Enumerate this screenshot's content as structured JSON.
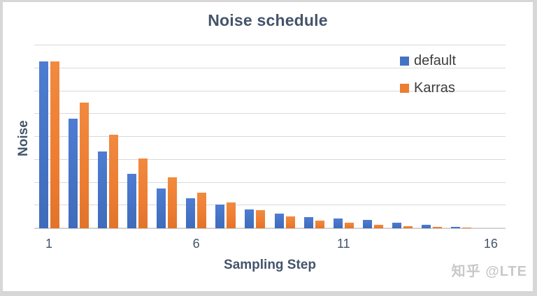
{
  "title": "Noise schedule",
  "watermark": "知乎 @LTE",
  "colors": {
    "series_default": "#4472C4",
    "series_karras": "#ED7D31",
    "title_text": "#44546A",
    "axis_text": "#44546A",
    "legend_text": "#3d3d3d",
    "gridline": "#d9d9d9",
    "watermark_text": "#c9c9c9",
    "background": "#ffffff"
  },
  "chart_data": {
    "type": "bar",
    "title": "Noise schedule",
    "xlabel": "Sampling Step",
    "ylabel": "Noise",
    "categories": [
      1,
      2,
      3,
      4,
      5,
      6,
      7,
      8,
      9,
      10,
      11,
      12,
      13,
      14,
      15,
      16
    ],
    "x_tick_labels": [
      "1",
      "6",
      "11",
      "16"
    ],
    "x_tick_positions": [
      1,
      6,
      11,
      16
    ],
    "ylim": [
      0,
      16
    ],
    "y_gridline_step": 2,
    "grid": true,
    "y_tick_labels_shown": false,
    "legend_position": "inside-top-right",
    "series": [
      {
        "name": "default",
        "color": "#4472C4",
        "values": [
          14.6,
          9.6,
          6.7,
          4.75,
          3.5,
          2.6,
          2.05,
          1.65,
          1.26,
          1.0,
          0.86,
          0.72,
          0.5,
          0.33,
          0.12,
          0.03
        ]
      },
      {
        "name": "Karras",
        "color": "#ED7D31",
        "values": [
          14.6,
          11.0,
          8.2,
          6.1,
          4.43,
          3.1,
          2.25,
          1.58,
          1.06,
          0.7,
          0.48,
          0.3,
          0.2,
          0.14,
          0.07,
          0.02
        ]
      }
    ]
  }
}
